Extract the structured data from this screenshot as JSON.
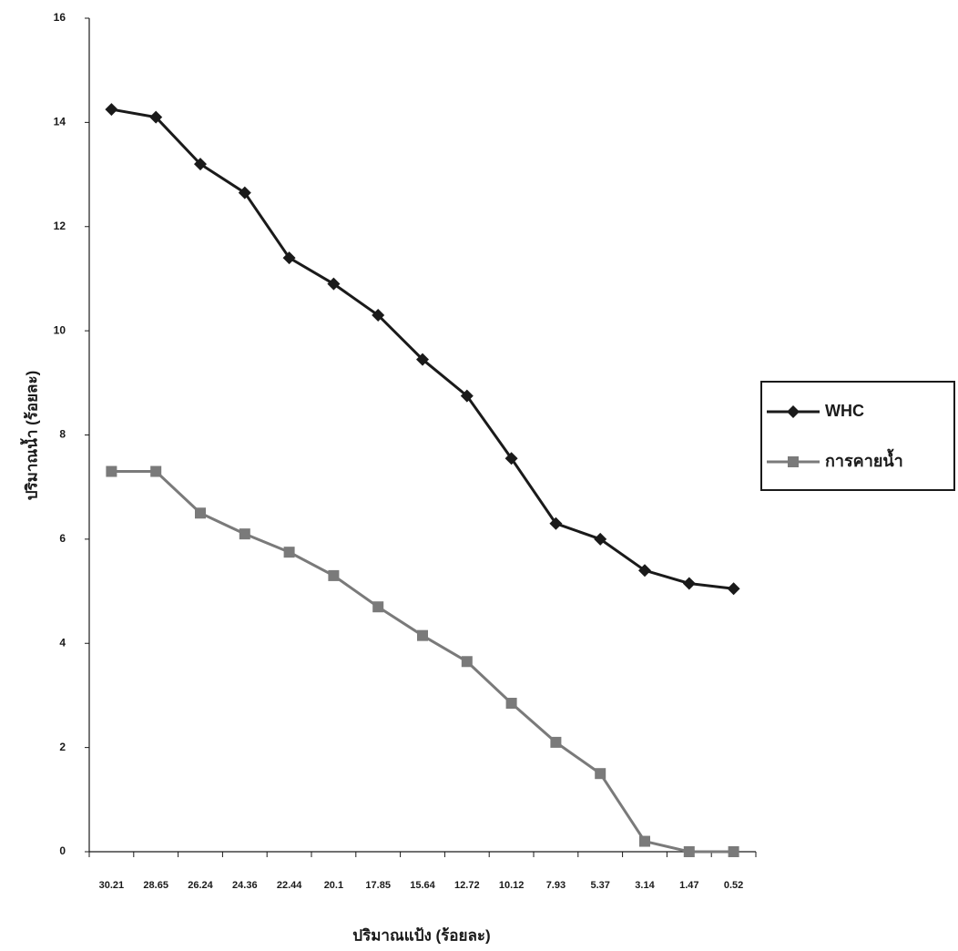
{
  "chart_data": {
    "type": "line",
    "x_label": "ปริมาณแป้ง (ร้อยละ)",
    "y_label": "ปริมาณน้ำ (ร้อยละ)",
    "categories": [
      "30.21",
      "28.65",
      "26.24",
      "24.36",
      "22.44",
      "20.1",
      "17.85",
      "15.64",
      "12.72",
      "10.12",
      "7.93",
      "5.37",
      "3.14",
      "1.47",
      "0.52"
    ],
    "series": [
      {
        "name": "WHC",
        "color": "#1a1a1a",
        "marker": "diamond",
        "values": [
          14.25,
          14.1,
          13.2,
          12.65,
          11.4,
          10.9,
          10.3,
          9.45,
          8.75,
          7.55,
          6.3,
          6.0,
          5.4,
          5.15,
          5.05
        ]
      },
      {
        "name": "การคายน้ำ",
        "color": "#7a7a7a",
        "marker": "square",
        "values": [
          7.3,
          7.3,
          6.5,
          6.1,
          5.75,
          5.3,
          4.7,
          4.15,
          3.65,
          2.85,
          2.1,
          1.5,
          0.2,
          0,
          0
        ]
      }
    ],
    "ylim": [
      0,
      16
    ],
    "yticks": [
      0,
      2,
      4,
      6,
      8,
      10,
      12,
      14,
      16
    ],
    "grid": false,
    "legend": "right"
  }
}
